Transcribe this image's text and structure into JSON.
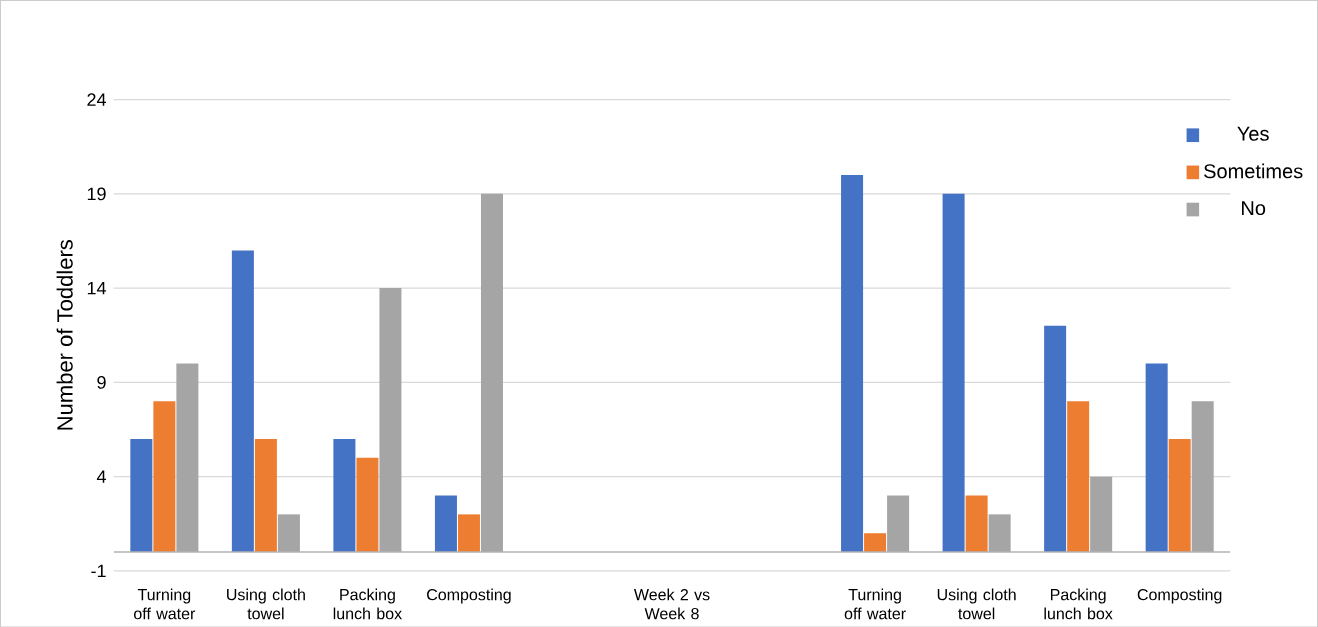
{
  "chart_data": {
    "type": "bar",
    "ylabel": "Number of Toddlers",
    "categories": [
      "Turning off water",
      "Using cloth towel",
      "Packing lunch box",
      "Composting",
      null,
      "Week 2 vs Week 8",
      null,
      "Turning off water",
      "Using cloth towel",
      "Packing lunch box",
      "Composting"
    ],
    "series": [
      {
        "name": "Yes",
        "color": "#4472c4",
        "values": [
          6,
          16,
          6,
          3,
          null,
          null,
          null,
          20,
          19,
          12,
          10
        ]
      },
      {
        "name": "Sometimes",
        "color": "#ed7d31",
        "values": [
          8,
          6,
          5,
          2,
          null,
          null,
          null,
          1,
          3,
          8,
          6
        ]
      },
      {
        "name": "No",
        "color": "#a5a5a5",
        "values": [
          10,
          2,
          14,
          19,
          null,
          null,
          null,
          3,
          2,
          4,
          8
        ]
      }
    ],
    "ylim": [
      -1,
      24
    ],
    "yticks": [
      -1,
      4,
      9,
      14,
      19,
      24
    ],
    "grid": "y",
    "legend": "top right"
  }
}
